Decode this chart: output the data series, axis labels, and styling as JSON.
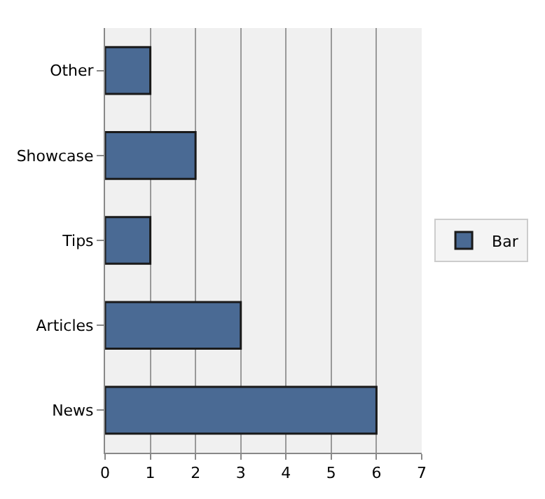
{
  "chart_data": {
    "type": "bar",
    "orientation": "horizontal",
    "categories": [
      "Other",
      "Showcase",
      "Tips",
      "Articles",
      "News"
    ],
    "series": [
      {
        "name": "Bar",
        "color": "#4a6a94",
        "values": [
          1,
          2,
          1,
          3,
          6
        ]
      }
    ],
    "xlim": [
      0,
      7
    ],
    "xticks": [
      0,
      1,
      2,
      3,
      4,
      5,
      6,
      7
    ],
    "grid": "x",
    "legend": "right"
  }
}
